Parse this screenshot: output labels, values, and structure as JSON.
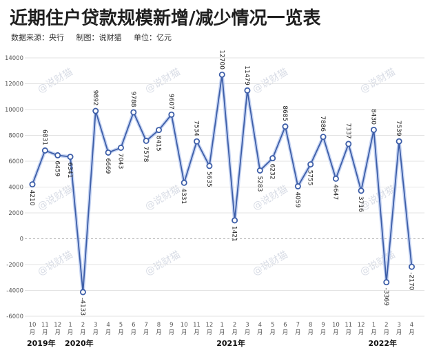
{
  "title": "近期住户贷款规模新增/减少情况一览表",
  "subtitle": {
    "source": "数据来源：央行",
    "maker": "制图：说财猫",
    "unit": "单位：亿元"
  },
  "watermark": "@说财猫",
  "colors": {
    "line": "#3d5ea8",
    "line_glow": "#aec2ee",
    "grid": "#e3e3e3",
    "zero": "#b8b8b8",
    "text": "#222222"
  },
  "chart_data": {
    "type": "line",
    "title": "近期住户贷款规模新增/减少情况一览表",
    "ylim": [
      -6000,
      14000
    ],
    "yticks": [
      -6000,
      -4000,
      -2000,
      0,
      2000,
      4000,
      6000,
      8000,
      10000,
      12000,
      14000
    ],
    "grid": true,
    "categories": [
      "10月",
      "11月",
      "12月",
      "1月",
      "2月",
      "3月",
      "4月",
      "5月",
      "6月",
      "7月",
      "8月",
      "9月",
      "10月",
      "11月",
      "12月",
      "1月",
      "2月",
      "3月",
      "4月",
      "5月",
      "6月",
      "7月",
      "8月",
      "9月",
      "10月",
      "11月",
      "12月",
      "1月",
      "2月",
      "3月",
      "4月"
    ],
    "month_labels": [
      [
        "10",
        "月"
      ],
      [
        "11",
        "月"
      ],
      [
        "12",
        "月"
      ],
      [
        "1",
        "月"
      ],
      [
        "2",
        "月"
      ],
      [
        "3",
        "月"
      ],
      [
        "4",
        "月"
      ],
      [
        "5",
        "月"
      ],
      [
        "6",
        "月"
      ],
      [
        "7",
        "月"
      ],
      [
        "8",
        "月"
      ],
      [
        "9",
        "月"
      ],
      [
        "10",
        "月"
      ],
      [
        "11",
        "月"
      ],
      [
        "12",
        "月"
      ],
      [
        "1",
        "月"
      ],
      [
        "2",
        "月"
      ],
      [
        "3",
        "月"
      ],
      [
        "4",
        "月"
      ],
      [
        "5",
        "月"
      ],
      [
        "6",
        "月"
      ],
      [
        "7",
        "月"
      ],
      [
        "8",
        "月"
      ],
      [
        "9",
        "月"
      ],
      [
        "10",
        "月"
      ],
      [
        "11",
        "月"
      ],
      [
        "12",
        "月"
      ],
      [
        "1",
        "月"
      ],
      [
        "2",
        "月"
      ],
      [
        "3",
        "月"
      ],
      [
        "4",
        "月"
      ]
    ],
    "years": [
      {
        "label": "2019年",
        "index": 0
      },
      {
        "label": "2020年",
        "index": 3
      },
      {
        "label": "2021年",
        "index": 15
      },
      {
        "label": "2022年",
        "index": 27
      }
    ],
    "series": [
      {
        "values": [
          4210,
          6831,
          6459,
          6341,
          -4133,
          9892,
          6669,
          7043,
          9788,
          7578,
          8415,
          9607,
          4331,
          7534,
          5635,
          12700,
          1421,
          11479,
          5283,
          6232,
          8685,
          4059,
          5755,
          7886,
          4647,
          7337,
          3716,
          8430,
          -3369,
          7539,
          -2170
        ],
        "labels": [
          "4210",
          "6831",
          "6459",
          "6341",
          "-4133",
          "9892",
          "6669",
          "7043",
          "9788",
          "7578",
          "8415",
          "9607",
          "4331",
          "7534",
          "5635",
          "12700",
          "1421",
          "11479",
          "5283",
          "6232",
          "8685",
          "4059",
          "5755",
          "7886",
          "4647",
          "7337",
          "3716",
          "8430",
          "-3369",
          "7539",
          "-2170"
        ]
      }
    ]
  }
}
